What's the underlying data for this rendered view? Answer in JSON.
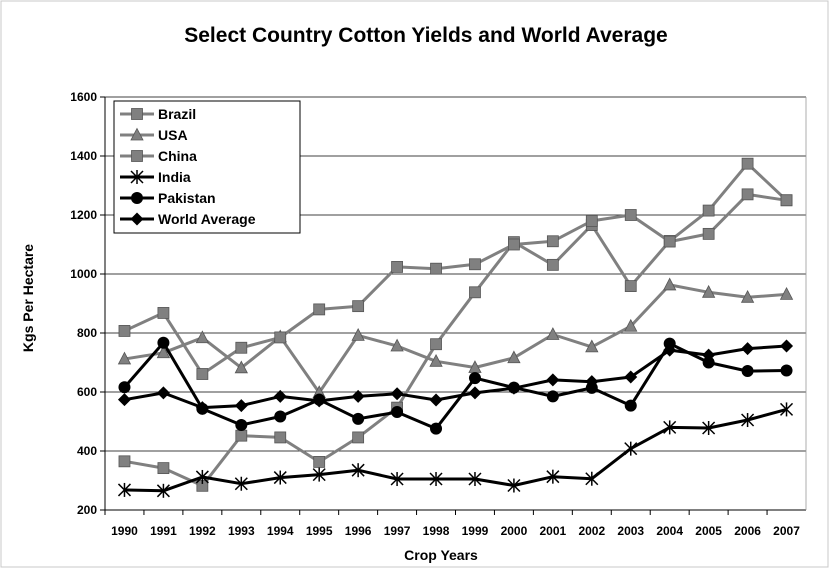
{
  "chart_data": {
    "type": "line",
    "title": "Select Country Cotton Yields and World Average",
    "xlabel": "Crop Years",
    "ylabel": "Kgs Per Hectare",
    "ylim": [
      200,
      1600
    ],
    "yticks": [
      200,
      400,
      600,
      800,
      1000,
      1200,
      1400,
      1600
    ],
    "grid": "horizontal",
    "legend_position": "top-left",
    "categories": [
      "1990",
      "1991",
      "1992",
      "1993",
      "1994",
      "1995",
      "1996",
      "1997",
      "1998",
      "1999",
      "2000",
      "2001",
      "2002",
      "2003",
      "2004",
      "2005",
      "2006",
      "2007"
    ],
    "series": [
      {
        "name": "Brazil",
        "color": "#808080",
        "marker": "square",
        "values": [
          365,
          342,
          282,
          452,
          446,
          363,
          446,
          547,
          762,
          938,
          1108,
          1031,
          1166,
          959,
          1112,
          1215,
          1374,
          1250
        ]
      },
      {
        "name": "USA",
        "color": "#808080",
        "marker": "triangle",
        "values": [
          712,
          733,
          784,
          682,
          787,
          598,
          792,
          756,
          704,
          683,
          716,
          795,
          753,
          823,
          963,
          938,
          921,
          931
        ]
      },
      {
        "name": "China",
        "color": "#808080",
        "marker": "square",
        "values": [
          807,
          868,
          661,
          750,
          785,
          880,
          891,
          1024,
          1018,
          1033,
          1100,
          1111,
          1180,
          1200,
          1110,
          1136,
          1270,
          1250
        ]
      },
      {
        "name": "India",
        "color": "#000000",
        "marker": "asterisk",
        "values": [
          268,
          265,
          312,
          289,
          310,
          320,
          335,
          305,
          305,
          305,
          283,
          313,
          306,
          408,
          480,
          478,
          505,
          541
        ]
      },
      {
        "name": "Pakistan",
        "color": "#000000",
        "marker": "circle",
        "values": [
          616,
          767,
          543,
          488,
          517,
          574,
          509,
          532,
          476,
          647,
          615,
          585,
          614,
          554,
          764,
          700,
          671,
          673
        ]
      },
      {
        "name": "World Average",
        "color": "#000000",
        "marker": "diamond",
        "values": [
          574,
          597,
          547,
          554,
          585,
          570,
          585,
          594,
          573,
          597,
          613,
          641,
          635,
          651,
          742,
          725,
          747,
          756
        ]
      }
    ]
  }
}
